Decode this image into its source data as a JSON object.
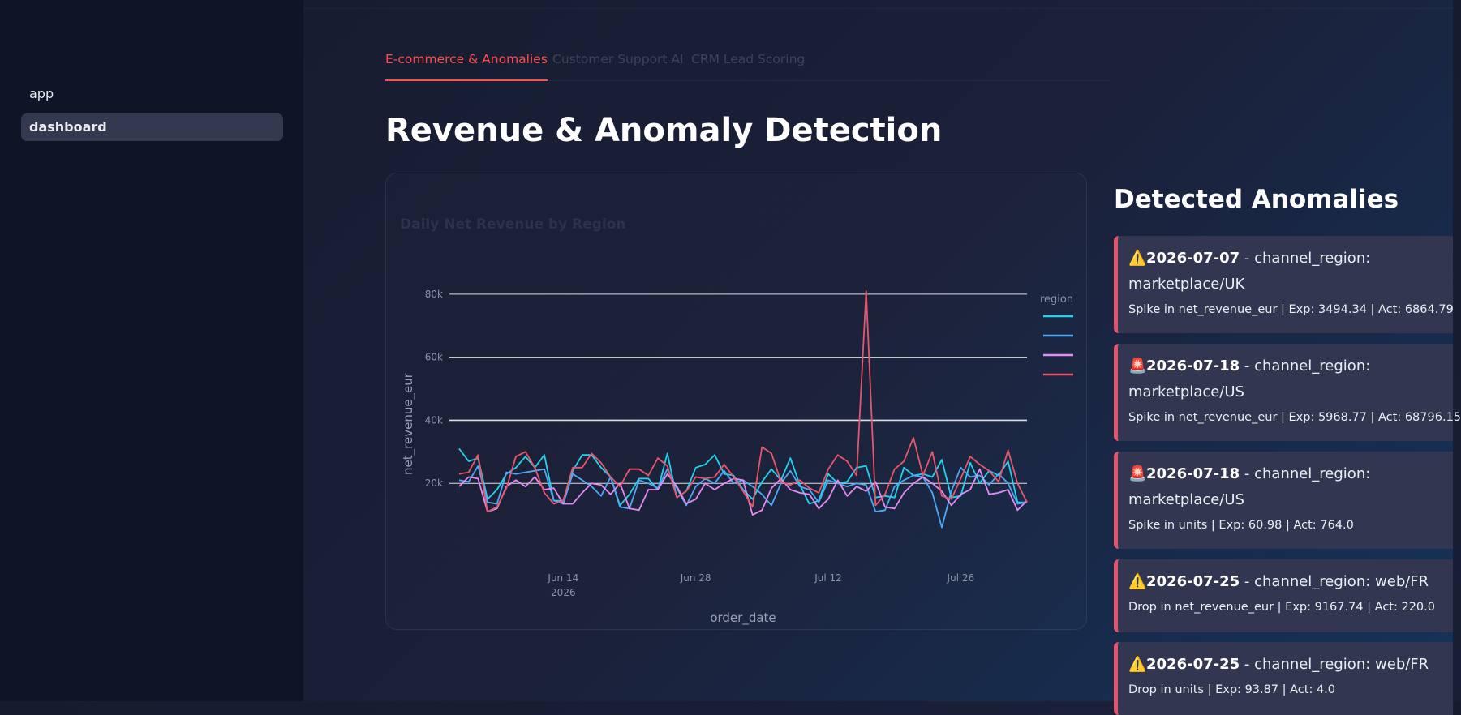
{
  "sidebar": {
    "items": [
      {
        "label": "app",
        "active": false
      },
      {
        "label": "dashboard",
        "active": true
      }
    ]
  },
  "tabs": [
    {
      "label": "E-commerce & Anomalies",
      "active": true
    },
    {
      "label": "Customer Support AI",
      "active": false
    },
    {
      "label": "CRM Lead Scoring",
      "active": false
    }
  ],
  "page": {
    "title": "Revenue & Anomaly Detection",
    "anomalies_title": "Detected Anomalies"
  },
  "anomalies": [
    {
      "icon": "warning-icon",
      "icon_glyph": "⚠️",
      "date": "2026-07-07",
      "head_rest": " - channel_region:",
      "line2": "marketplace/UK",
      "detail": "Spike in net_revenue_eur | Exp: 3494.34 | Act: 6864.79"
    },
    {
      "icon": "siren-icon",
      "icon_glyph": "🚨",
      "date": "2026-07-18",
      "head_rest": " - channel_region:",
      "line2": "marketplace/US",
      "detail": "Spike in net_revenue_eur | Exp: 5968.77 | Act: 68796.15"
    },
    {
      "icon": "siren-icon",
      "icon_glyph": "🚨",
      "date": "2026-07-18",
      "head_rest": " - channel_region:",
      "line2": "marketplace/US",
      "detail": "Spike in units | Exp: 60.98 | Act: 764.0"
    },
    {
      "icon": "warning-icon",
      "icon_glyph": "⚠️",
      "date": "2026-07-25",
      "head_rest": " - channel_region: web/FR",
      "line2": "",
      "detail": "Drop in net_revenue_eur | Exp: 9167.74 | Act: 220.0"
    },
    {
      "icon": "warning-icon",
      "icon_glyph": "⚠️",
      "date": "2026-07-25",
      "head_rest": " - channel_region: web/FR",
      "line2": "",
      "detail": "Drop in units | Exp: 93.87 | Act: 4.0"
    }
  ],
  "colors": {
    "accent": "#ff4b4b",
    "anomaly_border": "#e0556b",
    "series": [
      "#22d3ee",
      "#4ea8f5",
      "#e58bef",
      "#e8566c"
    ]
  },
  "chart_data": {
    "type": "line",
    "title": "Daily Net Revenue by Region",
    "xlabel": "order_date",
    "ylabel": "net_revenue_eur",
    "x_start": "2026-06-03",
    "x_ticks": [
      {
        "date": "2026-06-14",
        "label": "Jun 14",
        "sub": "2026"
      },
      {
        "date": "2026-06-28",
        "label": "Jun 28",
        "sub": ""
      },
      {
        "date": "2026-07-12",
        "label": "Jul 12",
        "sub": ""
      },
      {
        "date": "2026-07-26",
        "label": "Jul 26",
        "sub": ""
      }
    ],
    "y_ticks": [
      20000,
      40000,
      60000,
      80000
    ],
    "y_tick_labels": [
      "20k",
      "40k",
      "60k",
      "80k"
    ],
    "ylim": [
      0,
      90000
    ],
    "grid": true,
    "legend": {
      "title": "region",
      "placement": "right"
    },
    "series": [
      {
        "color": "#22d3ee",
        "values": [
          31000,
          27000,
          28000,
          15000,
          18000,
          23000,
          25000,
          28500,
          25000,
          29000,
          14500,
          14500,
          24000,
          29000,
          29000,
          25000,
          22000,
          13000,
          16500,
          21500,
          21500,
          18000,
          29500,
          15500,
          17500,
          25000,
          26000,
          29000,
          23000,
          22500,
          18000,
          15000,
          20500,
          24500,
          21000,
          28000,
          19500,
          13500,
          14500,
          23000,
          20000,
          20500,
          25000,
          25500,
          15500,
          16000,
          15500,
          25000,
          22500,
          23000,
          22000,
          27500,
          15500,
          16000,
          26500,
          20000,
          24000,
          22500,
          27000,
          14000,
          14000
        ]
      },
      {
        "color": "#4ea8f5",
        "values": [
          21000,
          20500,
          25500,
          14000,
          13500,
          23500,
          23000,
          23500,
          24000,
          24500,
          14500,
          13500,
          23000,
          21000,
          19000,
          16000,
          22000,
          12500,
          12000,
          21000,
          20000,
          18500,
          24500,
          18500,
          13000,
          19000,
          21500,
          20000,
          24000,
          20000,
          21000,
          19000,
          16500,
          13000,
          20000,
          24000,
          19000,
          18000,
          14000,
          21000,
          20000,
          19000,
          20000,
          19500,
          11000,
          11500,
          19000,
          21000,
          22500,
          22000,
          17000,
          6000,
          17500,
          25000,
          22000,
          22500,
          19500,
          23000,
          20000,
          13500,
          14000
        ]
      },
      {
        "color": "#e58bef",
        "values": [
          19000,
          22000,
          21500,
          11000,
          12000,
          19000,
          21000,
          19000,
          22000,
          18000,
          18500,
          13500,
          13500,
          17000,
          20000,
          19500,
          16500,
          20000,
          12000,
          11500,
          18000,
          18000,
          23000,
          19000,
          13500,
          15000,
          20000,
          18000,
          20000,
          21500,
          21000,
          10000,
          11500,
          18500,
          21500,
          18000,
          17000,
          16500,
          12000,
          15000,
          21000,
          16000,
          19000,
          17500,
          20500,
          12500,
          12000,
          17000,
          20000,
          22000,
          20000,
          17500,
          13000,
          16500,
          18000,
          24500,
          16500,
          17000,
          18000,
          11500,
          14500
        ]
      },
      {
        "color": "#e8566c",
        "values": [
          23000,
          23500,
          29000,
          11000,
          12500,
          18500,
          28500,
          30000,
          25000,
          17000,
          13500,
          14500,
          25000,
          25000,
          29500,
          26500,
          22000,
          19000,
          24500,
          24500,
          22500,
          28000,
          25500,
          15500,
          17500,
          22000,
          21500,
          22000,
          26000,
          22000,
          17500,
          12500,
          31500,
          29500,
          20500,
          19500,
          21000,
          18500,
          17000,
          24500,
          29000,
          27000,
          22500,
          81000,
          13000,
          16500,
          24500,
          27000,
          34500,
          22500,
          30000,
          16000,
          15000,
          21500,
          28500,
          26000,
          24000,
          20500,
          30500,
          20000,
          14000
        ]
      }
    ]
  }
}
